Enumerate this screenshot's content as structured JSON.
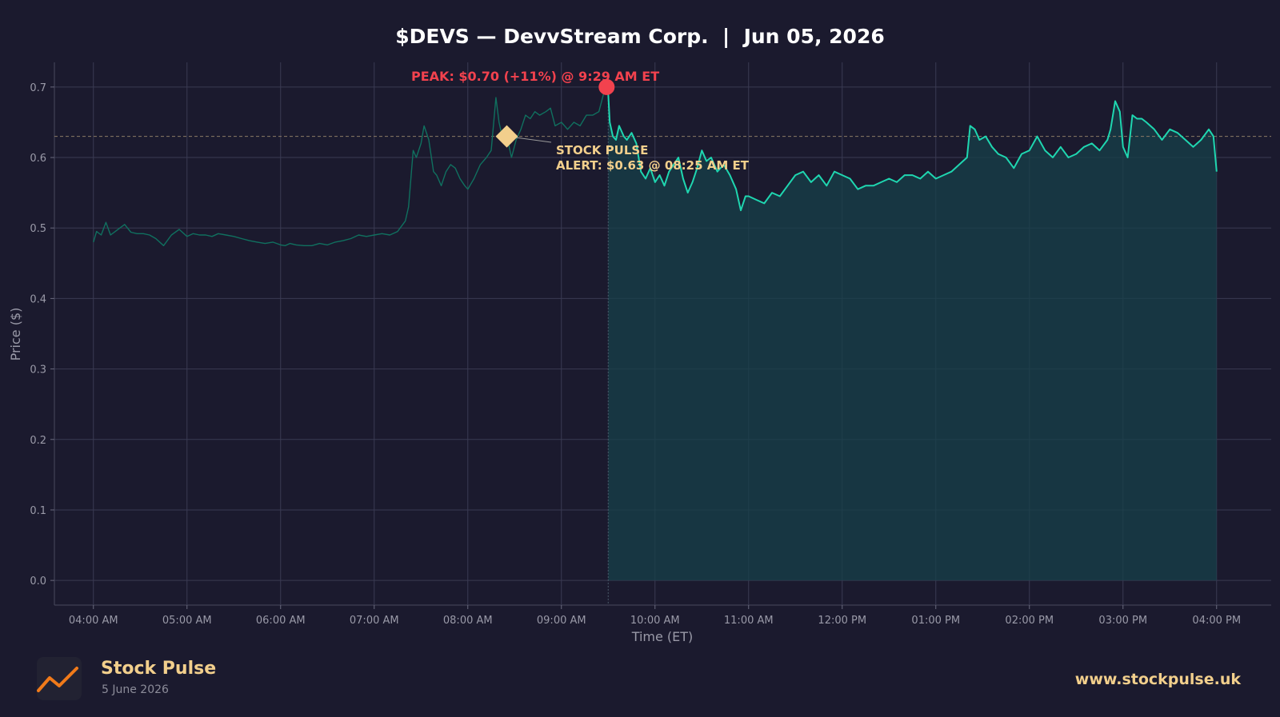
{
  "colors": {
    "background": "#1b1a2e",
    "grid": "#3a3a52",
    "line_premarket": "#10705f",
    "line_regular": "#1fd6b0",
    "fill_regular": "#17404a",
    "peak": "#f2424e",
    "alert": "#f2cf8c",
    "reference_line": "#8a7a66",
    "axis_text": "#9a9aa8"
  },
  "footer": {
    "brand_name": "Stock Pulse",
    "brand_date": "5 June 2026",
    "website": "www.stockpulse.uk",
    "logo_icon": "trend-line-icon"
  },
  "chart_data": {
    "type": "line",
    "title": "$DEVS — DevvStream Corp.  |  Jun 05, 2026",
    "xlabel": "Time (ET)",
    "ylabel": "Price ($)",
    "xlim": [
      "03:35",
      "16:35"
    ],
    "ylim": [
      -0.035,
      0.735
    ],
    "x_ticks": [
      "04:00 AM",
      "05:00 AM",
      "06:00 AM",
      "07:00 AM",
      "08:00 AM",
      "09:00 AM",
      "10:00 AM",
      "11:00 AM",
      "12:00 PM",
      "01:00 PM",
      "02:00 PM",
      "03:00 PM",
      "04:00 PM"
    ],
    "y_ticks": [
      "0.0",
      "0.1",
      "0.2",
      "0.3",
      "0.4",
      "0.5",
      "0.6",
      "0.7"
    ],
    "grid": true,
    "series": [
      {
        "session": "premarket",
        "x": [
          "04:00",
          "04:02",
          "04:05",
          "04:08",
          "04:11",
          "04:14",
          "04:17",
          "04:20",
          "04:24",
          "04:28",
          "04:32",
          "04:36",
          "04:40",
          "04:45",
          "04:50",
          "04:55",
          "05:00",
          "05:04",
          "05:08",
          "05:12",
          "05:16",
          "05:20",
          "05:25",
          "05:30",
          "05:35",
          "05:40",
          "05:45",
          "05:50",
          "05:55",
          "06:00",
          "06:03",
          "06:06",
          "06:10",
          "06:15",
          "06:20",
          "06:25",
          "06:30",
          "06:35",
          "06:40",
          "06:45",
          "06:50",
          "06:55",
          "07:00",
          "07:05",
          "07:10",
          "07:15",
          "07:20",
          "07:22",
          "07:25",
          "07:27",
          "07:30",
          "07:32",
          "07:35",
          "07:38",
          "07:40",
          "07:43",
          "07:46",
          "07:49",
          "07:52",
          "07:55",
          "07:58",
          "08:00",
          "08:04",
          "08:08",
          "08:12",
          "08:15",
          "08:18",
          "08:20",
          "08:22",
          "08:25",
          "08:28",
          "08:31",
          "08:34",
          "08:37",
          "08:40",
          "08:43",
          "08:46",
          "08:50",
          "08:53",
          "08:56",
          "09:00",
          "09:04",
          "09:08",
          "09:12",
          "09:16",
          "09:20",
          "09:24",
          "09:27",
          "09:29"
        ],
        "y": [
          0.48,
          0.495,
          0.49,
          0.508,
          0.49,
          0.495,
          0.5,
          0.505,
          0.494,
          0.492,
          0.492,
          0.49,
          0.485,
          0.475,
          0.49,
          0.498,
          0.488,
          0.492,
          0.49,
          0.49,
          0.488,
          0.492,
          0.49,
          0.488,
          0.485,
          0.482,
          0.48,
          0.478,
          0.48,
          0.476,
          0.475,
          0.478,
          0.476,
          0.475,
          0.475,
          0.478,
          0.476,
          0.48,
          0.482,
          0.485,
          0.49,
          0.488,
          0.49,
          0.492,
          0.49,
          0.495,
          0.51,
          0.53,
          0.61,
          0.6,
          0.62,
          0.645,
          0.625,
          0.58,
          0.575,
          0.56,
          0.58,
          0.59,
          0.585,
          0.57,
          0.56,
          0.555,
          0.57,
          0.59,
          0.6,
          0.61,
          0.685,
          0.65,
          0.63,
          0.63,
          0.6,
          0.625,
          0.64,
          0.66,
          0.655,
          0.665,
          0.66,
          0.665,
          0.67,
          0.645,
          0.65,
          0.64,
          0.65,
          0.645,
          0.66,
          0.66,
          0.665,
          0.69,
          0.7
        ]
      },
      {
        "session": "regular",
        "x": [
          "09:30",
          "09:31",
          "09:33",
          "09:35",
          "09:37",
          "09:40",
          "09:42",
          "09:45",
          "09:48",
          "09:51",
          "09:54",
          "09:57",
          "10:00",
          "10:03",
          "10:06",
          "10:09",
          "10:12",
          "10:15",
          "10:18",
          "10:21",
          "10:24",
          "10:27",
          "10:30",
          "10:33",
          "10:36",
          "10:40",
          "10:44",
          "10:48",
          "10:52",
          "10:55",
          "10:58",
          "11:00",
          "11:05",
          "11:10",
          "11:15",
          "11:20",
          "11:25",
          "11:30",
          "11:35",
          "11:40",
          "11:45",
          "11:50",
          "11:55",
          "12:00",
          "12:05",
          "12:10",
          "12:15",
          "12:20",
          "12:25",
          "12:30",
          "12:35",
          "12:40",
          "12:45",
          "12:50",
          "12:55",
          "13:00",
          "13:05",
          "13:10",
          "13:15",
          "13:20",
          "13:22",
          "13:25",
          "13:28",
          "13:32",
          "13:36",
          "13:40",
          "13:45",
          "13:50",
          "13:55",
          "14:00",
          "14:05",
          "14:10",
          "14:15",
          "14:20",
          "14:25",
          "14:30",
          "14:35",
          "14:40",
          "14:45",
          "14:50",
          "14:52",
          "14:55",
          "14:58",
          "15:00",
          "15:03",
          "15:06",
          "15:09",
          "15:12",
          "15:15",
          "15:20",
          "15:25",
          "15:30",
          "15:35",
          "15:40",
          "15:45",
          "15:50",
          "15:55",
          "15:58",
          "16:00"
        ],
        "y": [
          0.69,
          0.65,
          0.63,
          0.625,
          0.645,
          0.63,
          0.625,
          0.635,
          0.62,
          0.58,
          0.57,
          0.585,
          0.565,
          0.575,
          0.56,
          0.58,
          0.59,
          0.6,
          0.57,
          0.55,
          0.565,
          0.585,
          0.61,
          0.595,
          0.6,
          0.58,
          0.59,
          0.575,
          0.555,
          0.525,
          0.545,
          0.545,
          0.54,
          0.535,
          0.55,
          0.545,
          0.56,
          0.575,
          0.58,
          0.565,
          0.575,
          0.56,
          0.58,
          0.575,
          0.57,
          0.555,
          0.56,
          0.56,
          0.565,
          0.57,
          0.565,
          0.575,
          0.575,
          0.57,
          0.58,
          0.57,
          0.575,
          0.58,
          0.59,
          0.6,
          0.645,
          0.64,
          0.625,
          0.63,
          0.615,
          0.605,
          0.6,
          0.585,
          0.605,
          0.61,
          0.63,
          0.61,
          0.6,
          0.615,
          0.6,
          0.605,
          0.615,
          0.62,
          0.61,
          0.625,
          0.64,
          0.68,
          0.665,
          0.615,
          0.6,
          0.66,
          0.655,
          0.655,
          0.65,
          0.64,
          0.625,
          0.64,
          0.635,
          0.625,
          0.615,
          0.625,
          0.64,
          0.63,
          0.58
        ]
      }
    ],
    "reference_line": 0.63,
    "regular_session_start": "09:30",
    "annotations": {
      "peak": {
        "x": "09:29",
        "y": 0.7,
        "label": "PEAK: $0.70 (+11%) @ 9:29 AM ET"
      },
      "alert": {
        "x": "08:25",
        "y": 0.63,
        "label_line1": "STOCK PULSE",
        "label_line2": "ALERT: $0.63 @ 08:25 AM ET"
      }
    }
  }
}
